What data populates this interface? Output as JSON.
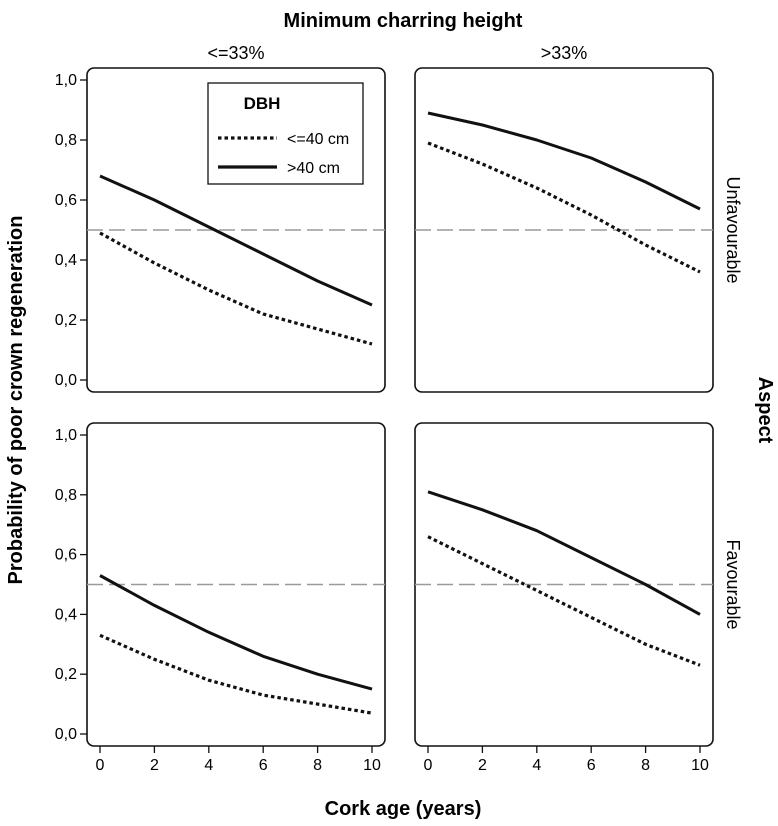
{
  "chart_data": {
    "type": "line",
    "title": "Minimum charring height",
    "xlabel": "Cork age (years)",
    "ylabel": "Probability of poor crown regeneration",
    "right_label": "Aspect",
    "col_labels": [
      "<=33%",
      ">33%"
    ],
    "row_labels": [
      "Unfavourable",
      "Favourable"
    ],
    "xlim": [
      0,
      10
    ],
    "ylim": [
      0,
      1
    ],
    "xticks": [
      "0",
      "2",
      "4",
      "6",
      "8",
      "10"
    ],
    "yticks": [
      "0,0",
      "0,2",
      "0,4",
      "0,6",
      "0,8",
      "1,0"
    ],
    "reference_line": 0.5,
    "legend": {
      "title": "DBH",
      "placement": "top-left panel, upper center",
      "entries": [
        {
          "label": "<=40 cm",
          "style": "dotted"
        },
        {
          "label": ">40 cm",
          "style": "solid"
        }
      ]
    },
    "x": [
      0,
      2,
      4,
      6,
      8,
      10
    ],
    "panels": [
      {
        "row": "Unfavourable",
        "col": "<=33%",
        "series": [
          {
            "name": "<=40 cm",
            "values": [
              0.49,
              0.39,
              0.3,
              0.22,
              0.17,
              0.12
            ]
          },
          {
            "name": ">40 cm",
            "values": [
              0.68,
              0.6,
              0.51,
              0.42,
              0.33,
              0.25
            ]
          }
        ]
      },
      {
        "row": "Unfavourable",
        "col": ">33%",
        "series": [
          {
            "name": "<=40 cm",
            "values": [
              0.79,
              0.72,
              0.64,
              0.55,
              0.45,
              0.36
            ]
          },
          {
            "name": ">40 cm",
            "values": [
              0.89,
              0.85,
              0.8,
              0.74,
              0.66,
              0.57
            ]
          }
        ]
      },
      {
        "row": "Favourable",
        "col": "<=33%",
        "series": [
          {
            "name": "<=40 cm",
            "values": [
              0.33,
              0.25,
              0.18,
              0.13,
              0.1,
              0.07
            ]
          },
          {
            "name": ">40 cm",
            "values": [
              0.53,
              0.43,
              0.34,
              0.26,
              0.2,
              0.15
            ]
          }
        ]
      },
      {
        "row": "Favourable",
        "col": ">33%",
        "series": [
          {
            "name": "<=40 cm",
            "values": [
              0.66,
              0.57,
              0.48,
              0.39,
              0.3,
              0.23
            ]
          },
          {
            "name": ">40 cm",
            "values": [
              0.81,
              0.75,
              0.68,
              0.59,
              0.5,
              0.4
            ]
          }
        ]
      }
    ],
    "colors": {
      "line": "#111111",
      "reference": "#9a9a9a"
    }
  }
}
